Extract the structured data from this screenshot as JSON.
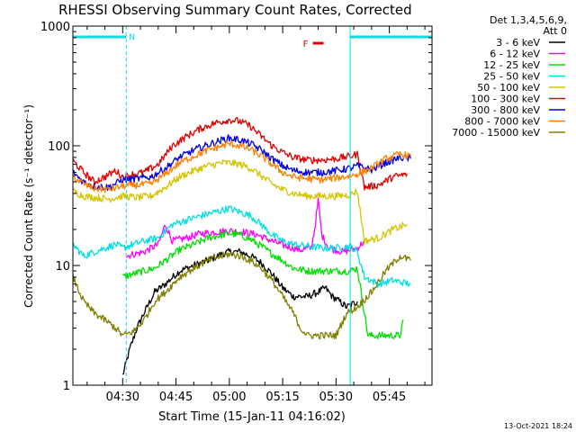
{
  "chart_data": {
    "type": "line",
    "title": "RHESSI Observing Summary Count Rates, Corrected",
    "xlabel": "Start Time (15-Jan-11 04:16:02)",
    "ylabel": "Corrected Count Rate (s⁻¹ detector⁻¹)",
    "yscale": "log",
    "ylim": [
      1,
      1000
    ],
    "y_tick_labels": [
      "1",
      "10",
      "100",
      "1000"
    ],
    "x_range_minutes": [
      0,
      101
    ],
    "x_ticks": [
      {
        "t": 14,
        "label": "04:30"
      },
      {
        "t": 29,
        "label": "04:45"
      },
      {
        "t": 44,
        "label": "05:00"
      },
      {
        "t": 59,
        "label": "05:15"
      },
      {
        "t": 74,
        "label": "05:30"
      },
      {
        "t": 89,
        "label": "05:45"
      }
    ],
    "legend_header": [
      "Det 1,3,4,5,6,9,",
      "Att 0"
    ],
    "legend_placement": "right",
    "series": [
      {
        "name": "3 - 6 keV",
        "color": "#000000",
        "points": [
          [
            14,
            1.2
          ],
          [
            16,
            2.0
          ],
          [
            18,
            3.0
          ],
          [
            20,
            4.0
          ],
          [
            23,
            6.0
          ],
          [
            26,
            7.0
          ],
          [
            30,
            9.0
          ],
          [
            34,
            10.0
          ],
          [
            38,
            11.0
          ],
          [
            42,
            12.5
          ],
          [
            44,
            13.0
          ],
          [
            47,
            13.0
          ],
          [
            50,
            12.0
          ],
          [
            53,
            10.5
          ],
          [
            56,
            8.5
          ],
          [
            59,
            6.5
          ],
          [
            62,
            5.5
          ],
          [
            66,
            5.5
          ],
          [
            69,
            6.0
          ],
          [
            71,
            6.5
          ],
          [
            73,
            5.5
          ],
          [
            75,
            5.0
          ],
          [
            77,
            4.5
          ],
          [
            80,
            5.0
          ]
        ]
      },
      {
        "name": "6 - 12 keV",
        "color": "#ff00ff",
        "points": [
          [
            15,
            12.0
          ],
          [
            20,
            13.0
          ],
          [
            24,
            15.0
          ],
          [
            26,
            22.0
          ],
          [
            28,
            16.0
          ],
          [
            32,
            17.0
          ],
          [
            36,
            18.5
          ],
          [
            40,
            19.0
          ],
          [
            44,
            19.5
          ],
          [
            48,
            19.0
          ],
          [
            52,
            18.0
          ],
          [
            56,
            16.0
          ],
          [
            60,
            14.5
          ],
          [
            64,
            13.5
          ],
          [
            67,
            14.0
          ],
          [
            68,
            20.0
          ],
          [
            69,
            35.0
          ],
          [
            70,
            18.0
          ],
          [
            72,
            14.0
          ],
          [
            76,
            13.0
          ],
          [
            80,
            14.0
          ],
          [
            82,
            16.0
          ]
        ]
      },
      {
        "name": "12 - 25 keV",
        "color": "#00e000",
        "points": [
          [
            14,
            8.0
          ],
          [
            17,
            8.5
          ],
          [
            20,
            9.0
          ],
          [
            23,
            9.5
          ],
          [
            26,
            11.0
          ],
          [
            30,
            13.5
          ],
          [
            34,
            15.0
          ],
          [
            38,
            17.0
          ],
          [
            42,
            18.0
          ],
          [
            44,
            18.5
          ],
          [
            47,
            18.0
          ],
          [
            50,
            16.5
          ],
          [
            53,
            14.5
          ],
          [
            56,
            12.5
          ],
          [
            59,
            11.0
          ],
          [
            62,
            9.5
          ],
          [
            66,
            9.0
          ],
          [
            70,
            9.0
          ],
          [
            74,
            9.0
          ],
          [
            78,
            9.0
          ],
          [
            80,
            9.5
          ],
          [
            83,
            2.6
          ],
          [
            92,
            2.6
          ],
          [
            93,
            3.5
          ]
        ]
      },
      {
        "name": "25 - 50 keV",
        "color": "#00e0e0",
        "points": [
          [
            0,
            15.0
          ],
          [
            3,
            12.0
          ],
          [
            6,
            13.0
          ],
          [
            9,
            14.0
          ],
          [
            12,
            15.0
          ],
          [
            14,
            14.0
          ],
          [
            17,
            15.0
          ],
          [
            20,
            16.0
          ],
          [
            24,
            17.0
          ],
          [
            28,
            22.0
          ],
          [
            32,
            24.0
          ],
          [
            36,
            26.0
          ],
          [
            40,
            28.0
          ],
          [
            44,
            30.0
          ],
          [
            47,
            28.0
          ],
          [
            50,
            26.0
          ],
          [
            53,
            22.0
          ],
          [
            56,
            18.0
          ],
          [
            59,
            16.0
          ],
          [
            62,
            15.0
          ],
          [
            66,
            14.5
          ],
          [
            70,
            14.0
          ],
          [
            74,
            14.0
          ],
          [
            78,
            14.5
          ],
          [
            80,
            13.0
          ],
          [
            82,
            8.0
          ],
          [
            86,
            7.0
          ],
          [
            90,
            7.5
          ],
          [
            95,
            7.0
          ]
        ]
      },
      {
        "name": "50 - 100 keV",
        "color": "#d4c400",
        "points": [
          [
            0,
            42.0
          ],
          [
            3,
            38.0
          ],
          [
            6,
            37.0
          ],
          [
            10,
            36.0
          ],
          [
            14,
            38.0
          ],
          [
            18,
            37.0
          ],
          [
            22,
            38.0
          ],
          [
            26,
            45.0
          ],
          [
            30,
            55.0
          ],
          [
            34,
            62.0
          ],
          [
            38,
            68.0
          ],
          [
            42,
            72.0
          ],
          [
            44,
            72.0
          ],
          [
            47,
            70.0
          ],
          [
            50,
            65.0
          ],
          [
            53,
            56.0
          ],
          [
            56,
            48.0
          ],
          [
            59,
            43.0
          ],
          [
            62,
            40.0
          ],
          [
            66,
            38.0
          ],
          [
            70,
            38.0
          ],
          [
            74,
            38.0
          ],
          [
            78,
            39.0
          ],
          [
            80,
            42.0
          ],
          [
            82,
            16.0
          ],
          [
            86,
            17.0
          ],
          [
            90,
            20.0
          ],
          [
            94,
            22.0
          ]
        ]
      },
      {
        "name": "100 - 300 keV",
        "color": "#e00000",
        "points": [
          [
            0,
            75.0
          ],
          [
            3,
            60.0
          ],
          [
            6,
            50.0
          ],
          [
            9,
            55.0
          ],
          [
            12,
            62.0
          ],
          [
            14,
            55.0
          ],
          [
            17,
            58.0
          ],
          [
            20,
            60.0
          ],
          [
            24,
            70.0
          ],
          [
            28,
            100.0
          ],
          [
            32,
            120.0
          ],
          [
            36,
            140.0
          ],
          [
            40,
            155.0
          ],
          [
            44,
            165.0
          ],
          [
            47,
            160.0
          ],
          [
            50,
            145.0
          ],
          [
            53,
            120.0
          ],
          [
            56,
            100.0
          ],
          [
            59,
            88.0
          ],
          [
            62,
            80.0
          ],
          [
            66,
            76.0
          ],
          [
            70,
            76.0
          ],
          [
            74,
            78.0
          ],
          [
            78,
            82.0
          ],
          [
            80,
            85.0
          ],
          [
            82,
            45.0
          ],
          [
            86,
            47.0
          ],
          [
            90,
            55.0
          ],
          [
            94,
            58.0
          ]
        ]
      },
      {
        "name": "300 - 800 keV",
        "color": "#0000e0",
        "points": [
          [
            0,
            60.0
          ],
          [
            3,
            50.0
          ],
          [
            6,
            46.0
          ],
          [
            10,
            45.0
          ],
          [
            14,
            52.0
          ],
          [
            18,
            53.0
          ],
          [
            22,
            55.0
          ],
          [
            26,
            65.0
          ],
          [
            30,
            80.0
          ],
          [
            34,
            92.0
          ],
          [
            38,
            102.0
          ],
          [
            42,
            112.0
          ],
          [
            44,
            116.0
          ],
          [
            47,
            112.0
          ],
          [
            50,
            104.0
          ],
          [
            53,
            92.0
          ],
          [
            56,
            78.0
          ],
          [
            59,
            68.0
          ],
          [
            62,
            62.0
          ],
          [
            66,
            60.0
          ],
          [
            70,
            60.0
          ],
          [
            74,
            62.0
          ],
          [
            78,
            65.0
          ],
          [
            80,
            68.0
          ],
          [
            84,
            63.0
          ],
          [
            88,
            72.0
          ],
          [
            92,
            80.0
          ],
          [
            95,
            78.0
          ]
        ]
      },
      {
        "name": "800 - 7000 keV",
        "color": "#ff8000",
        "points": [
          [
            0,
            55.0
          ],
          [
            3,
            48.0
          ],
          [
            6,
            44.0
          ],
          [
            10,
            43.0
          ],
          [
            14,
            46.0
          ],
          [
            18,
            47.0
          ],
          [
            22,
            48.0
          ],
          [
            26,
            58.0
          ],
          [
            30,
            72.0
          ],
          [
            34,
            82.0
          ],
          [
            38,
            92.0
          ],
          [
            42,
            100.0
          ],
          [
            44,
            104.0
          ],
          [
            47,
            100.0
          ],
          [
            50,
            93.0
          ],
          [
            53,
            82.0
          ],
          [
            56,
            70.0
          ],
          [
            59,
            60.0
          ],
          [
            62,
            55.0
          ],
          [
            66,
            53.0
          ],
          [
            70,
            52.0
          ],
          [
            74,
            54.0
          ],
          [
            78,
            56.0
          ],
          [
            80,
            58.0
          ],
          [
            84,
            65.0
          ],
          [
            88,
            78.0
          ],
          [
            92,
            85.0
          ],
          [
            95,
            82.0
          ]
        ]
      },
      {
        "name": "7000 - 15000 keV",
        "color": "#808000",
        "points": [
          [
            0,
            8.0
          ],
          [
            3,
            5.0
          ],
          [
            6,
            4.0
          ],
          [
            9,
            3.5
          ],
          [
            12,
            3.0
          ],
          [
            14,
            2.6
          ],
          [
            17,
            2.8
          ],
          [
            20,
            3.5
          ],
          [
            23,
            5.0
          ],
          [
            26,
            6.0
          ],
          [
            30,
            8.0
          ],
          [
            34,
            9.5
          ],
          [
            38,
            11.0
          ],
          [
            42,
            12.0
          ],
          [
            44,
            12.5
          ],
          [
            47,
            12.0
          ],
          [
            50,
            11.0
          ],
          [
            53,
            9.5
          ],
          [
            56,
            7.5
          ],
          [
            59,
            5.5
          ],
          [
            62,
            4.0
          ],
          [
            64,
            3.0
          ],
          [
            66,
            2.6
          ],
          [
            70,
            2.6
          ],
          [
            74,
            2.6
          ],
          [
            77,
            4.0
          ],
          [
            80,
            4.5
          ],
          [
            84,
            6.0
          ],
          [
            88,
            9.0
          ],
          [
            92,
            12.0
          ],
          [
            95,
            11.0
          ]
        ]
      }
    ],
    "annotations": {
      "night_bar_label": "N",
      "flare_bar_label": "F",
      "night_intervals_minutes": [
        [
          -1,
          15
        ],
        [
          78,
          102
        ]
      ],
      "flare_interval_minutes": [
        67.5,
        70.5
      ]
    }
  },
  "footer": {
    "timestamp": "13-Oct-2021 18:24"
  },
  "colors": {
    "night_line": "#00e0e0",
    "flare_line": "#e00000",
    "axis": "#000000"
  }
}
